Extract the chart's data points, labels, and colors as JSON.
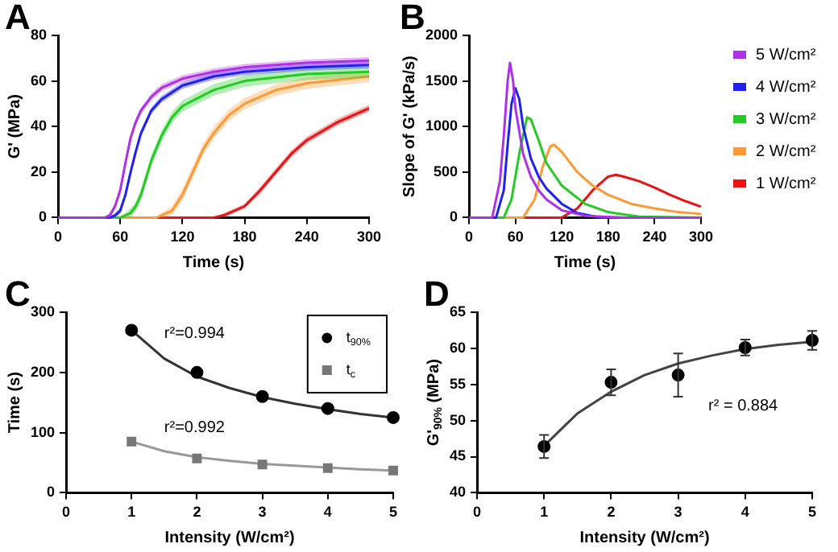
{
  "chart_data": [
    {
      "type": "line",
      "title": "A",
      "xlabel": "Time (s)",
      "ylabel": "G' (MPa)",
      "xlim": [
        0,
        300
      ],
      "xticks": [
        0,
        60,
        120,
        180,
        240,
        300
      ],
      "ylim": [
        0,
        80
      ],
      "yticks": [
        0,
        20,
        40,
        60,
        80
      ],
      "grid": false,
      "legend": false,
      "marker": "none",
      "series": [
        {
          "color": "#b030e8",
          "x": [
            0,
            45,
            50,
            55,
            60,
            65,
            70,
            75,
            80,
            90,
            100,
            120,
            150,
            180,
            240,
            300
          ],
          "values": [
            0,
            0,
            1,
            5,
            12,
            24,
            35,
            42,
            47,
            53,
            57,
            61,
            64,
            66,
            68,
            69
          ],
          "lower": [
            0,
            0,
            0,
            3.5,
            10.5,
            22.5,
            33.5,
            40.5,
            45.5,
            51.5,
            55.5,
            59.5,
            62.5,
            64.5,
            66.5,
            67.5
          ],
          "upper": [
            0,
            0,
            2,
            6.5,
            13.5,
            25.5,
            36.5,
            43.5,
            48.5,
            54.5,
            58.5,
            62.5,
            65.5,
            67.5,
            69.5,
            70.5
          ]
        },
        {
          "color": "#2020f0",
          "x": [
            0,
            50,
            55,
            60,
            65,
            70,
            75,
            80,
            90,
            100,
            120,
            150,
            180,
            240,
            300
          ],
          "values": [
            0,
            0,
            1,
            3,
            10,
            20,
            29,
            37,
            47,
            52,
            58,
            62,
            64,
            66,
            67
          ],
          "lower": [
            0,
            0,
            0,
            1.5,
            8.5,
            18.5,
            27.5,
            35.5,
            45.5,
            50.5,
            56.5,
            60.5,
            62.5,
            64.5,
            65.5
          ],
          "upper": [
            0,
            0,
            2,
            4.5,
            11.5,
            21.5,
            30.5,
            38.5,
            48.5,
            53.5,
            59.5,
            63.5,
            65.5,
            67.5,
            68.5
          ]
        },
        {
          "color": "#22cc22",
          "x": [
            0,
            60,
            65,
            70,
            75,
            80,
            90,
            100,
            110,
            120,
            150,
            180,
            240,
            300
          ],
          "values": [
            0,
            0,
            1,
            2,
            5,
            10,
            25,
            36,
            44,
            49,
            56,
            60,
            63,
            64
          ],
          "lower": [
            0,
            0,
            0,
            0,
            3,
            7.5,
            22.5,
            33.5,
            41.5,
            46.5,
            53.5,
            57.5,
            60.5,
            61.5
          ],
          "upper": [
            0,
            0,
            2,
            4,
            7,
            12.5,
            27.5,
            38.5,
            46.5,
            51.5,
            58.5,
            62.5,
            65.5,
            66.5
          ]
        },
        {
          "color": "#ff9933",
          "x": [
            0,
            95,
            100,
            110,
            120,
            130,
            140,
            150,
            165,
            180,
            210,
            240,
            300
          ],
          "values": [
            0,
            0,
            1,
            3,
            10,
            20,
            30,
            37,
            45,
            50,
            56,
            59,
            62
          ],
          "lower": [
            0,
            0,
            0,
            1,
            7.5,
            17.5,
            27.5,
            34.5,
            42.5,
            47.5,
            53.5,
            56.5,
            59.5
          ],
          "upper": [
            0,
            0,
            2,
            5,
            12.5,
            22.5,
            32.5,
            39.5,
            47.5,
            52.5,
            58.5,
            61.5,
            64.5
          ]
        },
        {
          "color": "#ee1111",
          "x": [
            0,
            150,
            160,
            180,
            195,
            210,
            225,
            240,
            270,
            300
          ],
          "values": [
            0,
            0,
            1,
            5,
            12,
            20,
            28,
            34,
            42,
            48
          ],
          "lower": [
            0,
            0,
            0,
            4,
            10.5,
            18.5,
            26.5,
            32.5,
            40.5,
            46.5
          ],
          "upper": [
            0,
            0,
            2,
            6,
            13.5,
            21.5,
            29.5,
            35.5,
            43.5,
            49.5
          ]
        }
      ]
    },
    {
      "type": "line",
      "title": "B",
      "xlabel": "Time (s)",
      "ylabel": "Slope of G' (kPa/s)",
      "xlim": [
        0,
        300
      ],
      "xticks": [
        0,
        60,
        120,
        180,
        240,
        300
      ],
      "ylim": [
        0,
        2000
      ],
      "yticks": [
        0,
        500,
        1000,
        1500,
        2000
      ],
      "grid": false,
      "legend": "right",
      "marker": "none",
      "series": [
        {
          "name": "5 W/cm²",
          "color": "#b030e8",
          "x": [
            0,
            30,
            40,
            45,
            50,
            53,
            57,
            60,
            70,
            80,
            90,
            100,
            120,
            150,
            200,
            300
          ],
          "values": [
            0,
            0,
            400,
            900,
            1500,
            1700,
            1500,
            1200,
            700,
            450,
            300,
            200,
            80,
            20,
            0,
            0
          ]
        },
        {
          "name": "4 W/cm²",
          "color": "#2020f0",
          "x": [
            0,
            35,
            45,
            50,
            55,
            60,
            65,
            70,
            80,
            90,
            100,
            120,
            140,
            170,
            300
          ],
          "values": [
            0,
            0,
            300,
            800,
            1250,
            1420,
            1300,
            1000,
            650,
            450,
            320,
            150,
            50,
            0,
            0
          ]
        },
        {
          "name": "3 W/cm²",
          "color": "#22cc22",
          "x": [
            0,
            45,
            55,
            65,
            75,
            80,
            90,
            100,
            120,
            150,
            180,
            220,
            300
          ],
          "values": [
            0,
            0,
            200,
            700,
            1100,
            1080,
            850,
            600,
            350,
            150,
            60,
            10,
            0
          ]
        },
        {
          "name": "2 W/cm²",
          "color": "#ff9933",
          "x": [
            0,
            70,
            85,
            95,
            105,
            110,
            120,
            140,
            160,
            180,
            210,
            240,
            270,
            300
          ],
          "values": [
            0,
            0,
            200,
            550,
            780,
            800,
            720,
            500,
            350,
            250,
            150,
            100,
            60,
            40
          ]
        },
        {
          "name": "1 W/cm²",
          "color": "#ee1111",
          "x": [
            0,
            120,
            140,
            160,
            180,
            190,
            200,
            220,
            240,
            260,
            280,
            300
          ],
          "values": [
            0,
            0,
            100,
            300,
            450,
            470,
            450,
            400,
            330,
            250,
            180,
            120
          ]
        }
      ]
    },
    {
      "type": "scatter",
      "title": "C",
      "xlabel": "Intensity (W/cm²)",
      "ylabel": "Time (s)",
      "xlim": [
        0,
        5
      ],
      "xticks": [
        0,
        1,
        2,
        3,
        4,
        5
      ],
      "ylim": [
        0,
        300
      ],
      "yticks": [
        0,
        100,
        200,
        300
      ],
      "grid": false,
      "legend": "top right",
      "annotations": [
        "r²=0.994",
        "r²=0.992"
      ],
      "series": [
        {
          "name": "t$_{90%}$",
          "marker": "circle",
          "color": "#000000",
          "x": [
            1,
            2,
            3,
            4,
            5
          ],
          "values": [
            270,
            200,
            160,
            140,
            125
          ]
        },
        {
          "name": "t$_{c}$",
          "marker": "square",
          "color": "#777777",
          "x": [
            1,
            2,
            3,
            4,
            5
          ],
          "values": [
            85,
            57,
            47,
            41,
            37
          ]
        },
        {
          "type": "line",
          "marker": "none",
          "color": "#333333",
          "x": [
            1,
            1.5,
            2,
            2.5,
            3,
            3.5,
            4,
            4.5,
            5
          ],
          "values": [
            270,
            223,
            193,
            174,
            159,
            148,
            139,
            131,
            125
          ]
        },
        {
          "type": "line",
          "marker": "none",
          "color": "#999999",
          "x": [
            1,
            1.5,
            2,
            2.5,
            3,
            3.5,
            4,
            4.5,
            5
          ],
          "values": [
            85,
            69,
            59,
            53,
            48,
            45,
            42,
            39,
            37
          ]
        }
      ]
    },
    {
      "type": "scatter",
      "title": "D",
      "xlabel": "Intensity (W/cm²)",
      "ylabel": "G'$_{90%}$ (MPa)",
      "xlim": [
        0,
        5
      ],
      "xticks": [
        0,
        1,
        2,
        3,
        4,
        5
      ],
      "ylim": [
        40,
        65
      ],
      "yticks": [
        40,
        45,
        50,
        55,
        60,
        65
      ],
      "grid": false,
      "legend": false,
      "annotations": [
        "r² = 0.884"
      ],
      "series": [
        {
          "marker": "circle",
          "color": "#000000",
          "x": [
            1,
            2,
            3,
            4,
            5
          ],
          "values": [
            46.4,
            55.3,
            56.3,
            60.1,
            61.1
          ],
          "errors": [
            1.6,
            1.8,
            3,
            1.1,
            1.3
          ]
        },
        {
          "type": "line",
          "marker": "none",
          "color": "#444444",
          "x": [
            1,
            1.5,
            2,
            2.5,
            3,
            3.5,
            4,
            4.5,
            5
          ],
          "values": [
            46.5,
            51,
            54,
            56.3,
            57.9,
            59,
            59.9,
            60.5,
            60.9
          ]
        }
      ]
    }
  ]
}
